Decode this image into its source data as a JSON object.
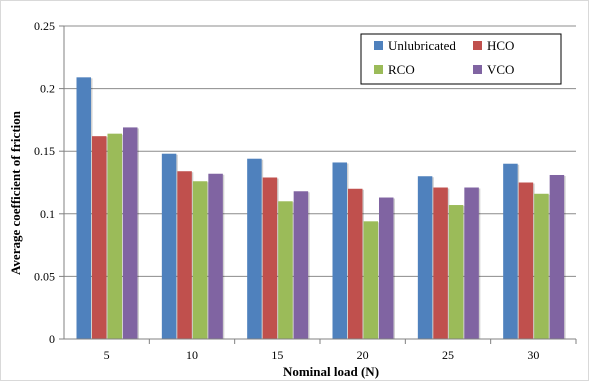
{
  "chart_data": {
    "type": "bar",
    "title": "",
    "xlabel": "Nominal load (N)",
    "ylabel": "Average coefficient of  friction",
    "categories": [
      "5",
      "10",
      "15",
      "20",
      "25",
      "30"
    ],
    "ylim": [
      0,
      0.25
    ],
    "yticks": [
      "0",
      "0.05",
      "0.1",
      "0.15",
      "0.2",
      "0.25"
    ],
    "grid": true,
    "legend_position": "top-right",
    "series": [
      {
        "name": "Unlubricated",
        "color": "#4f81bd",
        "values": [
          0.209,
          0.148,
          0.144,
          0.141,
          0.13,
          0.14
        ]
      },
      {
        "name": "HCO",
        "color": "#c0504d",
        "values": [
          0.162,
          0.134,
          0.129,
          0.12,
          0.121,
          0.125
        ]
      },
      {
        "name": "RCO",
        "color": "#9bbb59",
        "values": [
          0.164,
          0.126,
          0.11,
          0.094,
          0.107,
          0.116
        ]
      },
      {
        "name": "VCO",
        "color": "#8064a2",
        "values": [
          0.169,
          0.132,
          0.118,
          0.113,
          0.121,
          0.131
        ]
      }
    ]
  }
}
